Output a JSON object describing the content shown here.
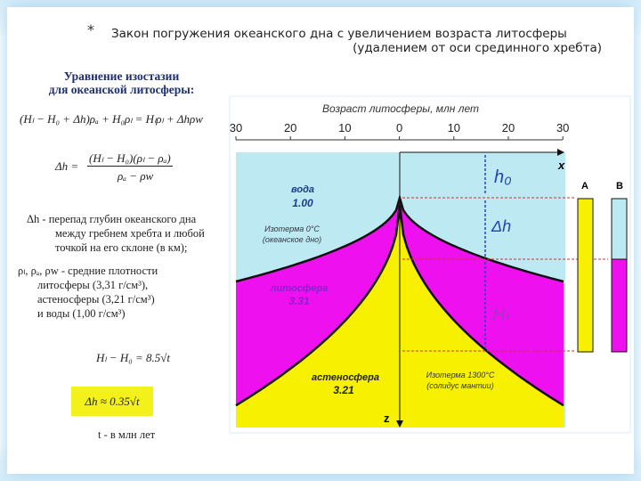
{
  "slide": {
    "bullet": "*",
    "title_line1": "Закон погружения океанского дна с увеличением возраста литосферы",
    "title_line2": "(удалением от оси срединного хребта)"
  },
  "left_panel": {
    "heading1": "Уравнение изостазии",
    "heading2": "для океанской литосферы:",
    "eq1": "(Hₗ − H₀ + Δh)ρₐ + H₀ρₗ = Hₗρₗ + Δhρw",
    "eq2_lhs": "Δh =",
    "eq2_num": "(Hₗ − H₀)(ρₗ − ρₐ)",
    "eq2_den": "ρₐ − ρw",
    "dh_def": [
      "Δh - перепад глубин океанского дна",
      "между гребнем хребта и любой",
      "точкой на его склоне (в км);"
    ],
    "rho_def": [
      "ρₗ, ρₐ, ρw - средние плотности",
      "литосферы (3,31 г/см³),",
      "астеносферы (3,21 г/см³)",
      "и воды (1,00 г/см³)"
    ],
    "eq3": "Hₗ − H₀ = 8.5√t",
    "eq4": "Δh ≈ 0.35√t",
    "t_def": "t - в млн лет"
  },
  "diagram": {
    "axis_title": "Возраст литосферы, млн лет",
    "ticks": [
      "30",
      "20",
      "10",
      "0",
      "10",
      "20",
      "30"
    ],
    "x_label": "x",
    "z_label": "z",
    "water": "вода",
    "water_density": "1.00",
    "litho": "литосфера",
    "litho_density": "3.31",
    "astheno": "астеносфера",
    "astheno_density": "3.21",
    "iso0_1": "Изотерма 0°C",
    "iso0_2": "(океанское дно)",
    "iso1300_1": "Изотерма 1300°C",
    "iso1300_2": "(солидус мантии)",
    "h0": "h₀",
    "dh": "Δh",
    "Hl": "Hₗ",
    "colA": "A",
    "colB": "B",
    "colors": {
      "water": "#bdeaf2",
      "litho": "#ee10ee",
      "astheno": "#f7f000"
    }
  }
}
